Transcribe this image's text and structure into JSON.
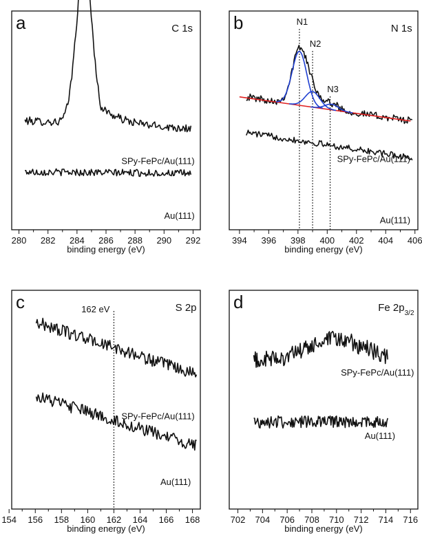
{
  "chart_data": [
    {
      "panel": "a",
      "type": "line",
      "title": "C 1s",
      "xlabel": "binding energy (eV)",
      "xlim": [
        279.5,
        292.5
      ],
      "xticks": [
        "280",
        "282",
        "284",
        "286",
        "288",
        "290",
        "292"
      ],
      "series": [
        {
          "name": "SPy-FePc/Au(111)",
          "noise": 0.025,
          "trend": [
            0.45,
            0.4
          ],
          "peaks": [
            {
              "center": 284.5,
              "height": 1.0,
              "width": 0.55,
              "tail": 1.4
            }
          ]
        },
        {
          "name": "Au(111)",
          "noise": 0.022,
          "trend": [
            0.13,
            0.12
          ],
          "peaks": []
        }
      ]
    },
    {
      "panel": "b",
      "type": "line",
      "title": "N 1s",
      "xlabel": "binding energy (eV)",
      "xlim": [
        393.3,
        406.2
      ],
      "xticks": [
        "394",
        "396",
        "398",
        "400",
        "402",
        "404",
        "406"
      ],
      "peak_labels": [
        {
          "label": "N1",
          "x": 398.1
        },
        {
          "label": "N2",
          "x": 399.0
        },
        {
          "label": "N3",
          "x": 400.2
        }
      ],
      "baseline": {
        "color": "#e02020",
        "from": [
          394.0,
          0.55
        ],
        "to": [
          405.7,
          0.38
        ]
      },
      "components": [
        {
          "name": "N1",
          "color": "#1f3fd1",
          "center": 398.1,
          "height": 0.38,
          "width": 0.5
        },
        {
          "name": "N2",
          "color": "#1f3fd1",
          "center": 399.0,
          "height": 0.11,
          "width": 0.5
        },
        {
          "name": "N3",
          "color": "#1f3fd1",
          "center": 400.3,
          "height": 0.04,
          "width": 0.45
        }
      ],
      "series": [
        {
          "name": "SPy-FePc/Au(111)",
          "noise": 0.025,
          "trend": [
            0.55,
            0.38
          ],
          "peaks": [
            {
              "center": 398.1,
              "height": 0.38,
              "width": 0.5,
              "tail": 0
            },
            {
              "center": 399.0,
              "height": 0.11,
              "width": 0.5,
              "tail": 0
            },
            {
              "center": 400.3,
              "height": 0.04,
              "width": 0.45,
              "tail": 0
            }
          ]
        },
        {
          "name": "Au(111)",
          "noise": 0.022,
          "trend": [
            0.3,
            0.12
          ],
          "peaks": []
        }
      ]
    },
    {
      "panel": "c",
      "type": "line",
      "title": "S 2p",
      "xlabel": "binding energy (eV)",
      "xlim": [
        154.2,
        168.6
      ],
      "xticks": [
        "154",
        "156",
        "158",
        "160",
        "162",
        "164",
        "166",
        "168"
      ],
      "marker": {
        "label": "162 eV",
        "x": 162.0
      },
      "series": [
        {
          "name": "SPy-FePc/Au(111)",
          "noise": 0.035,
          "trend": [
            0.88,
            0.58
          ],
          "peaks": []
        },
        {
          "name": "Au(111)",
          "noise": 0.035,
          "trend": [
            0.46,
            0.17
          ],
          "peaks": []
        }
      ]
    },
    {
      "panel": "d",
      "type": "line",
      "title": "Fe 2p",
      "title_sub": "3/2",
      "xlabel": "binding energy (eV)",
      "xlim": [
        701.3,
        716.6
      ],
      "xticks": [
        "702",
        "704",
        "706",
        "708",
        "710",
        "712",
        "714",
        "716"
      ],
      "series": [
        {
          "name": "SPy-FePc/Au(111)",
          "noise": 0.05,
          "trend": [
            0.66,
            0.66
          ],
          "peaks": [
            {
              "center": 710.0,
              "height": 0.12,
              "width": 2.3,
              "tail": 0
            }
          ]
        },
        {
          "name": "Au(111)",
          "noise": 0.035,
          "trend": [
            0.31,
            0.31
          ],
          "peaks": []
        }
      ]
    }
  ]
}
